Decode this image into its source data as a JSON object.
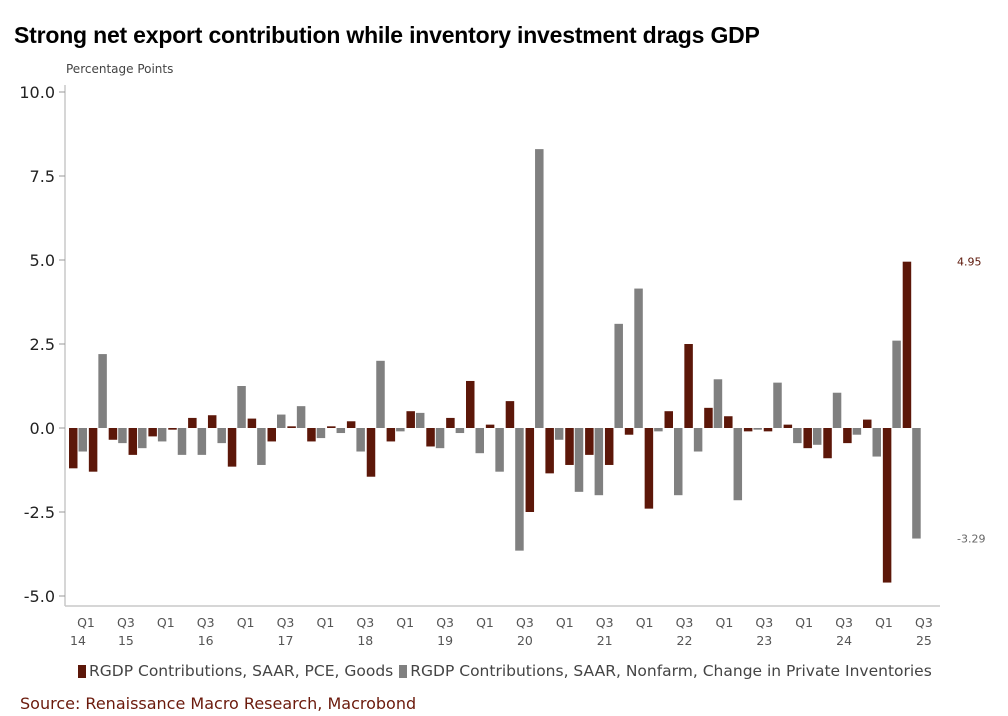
{
  "chart_data": {
    "type": "bar",
    "title": "Strong net export contribution while inventory investment drags GDP",
    "ylabel": "Percentage Points",
    "xlabel": "",
    "ylim": [
      -5.0,
      10.0
    ],
    "yticks": [
      "10.0",
      "7.5",
      "5.0",
      "2.5",
      "0.0",
      "-2.5",
      "-5.0"
    ],
    "ytick_values": [
      10,
      7.5,
      5,
      2.5,
      0,
      -2.5,
      -5
    ],
    "x_tick_labels": [
      {
        "q": "Q1",
        "y": "14"
      },
      {
        "q": "Q3",
        "y": "15"
      },
      {
        "q": "Q1",
        "y": ""
      },
      {
        "q": "Q3",
        "y": "16"
      },
      {
        "q": "Q1",
        "y": ""
      },
      {
        "q": "Q3",
        "y": "17"
      },
      {
        "q": "Q1",
        "y": ""
      },
      {
        "q": "Q3",
        "y": "18"
      },
      {
        "q": "Q1",
        "y": ""
      },
      {
        "q": "Q3",
        "y": "19"
      },
      {
        "q": "Q1",
        "y": ""
      },
      {
        "q": "Q3",
        "y": "20"
      },
      {
        "q": "Q1",
        "y": ""
      },
      {
        "q": "Q3",
        "y": "21"
      },
      {
        "q": "Q1",
        "y": ""
      },
      {
        "q": "Q3",
        "y": "22"
      },
      {
        "q": "Q1",
        "y": ""
      },
      {
        "q": "Q3",
        "y": "23"
      },
      {
        "q": "Q1",
        "y": ""
      },
      {
        "q": "Q3",
        "y": "24"
      },
      {
        "q": "Q1",
        "y": ""
      },
      {
        "q": "Q3",
        "y": "25"
      }
    ],
    "series": [
      {
        "name": "RGDP Contributions, SAAR, PCE, Goods",
        "color": "#5c1709",
        "values": [
          -1.2,
          -1.3,
          -0.35,
          -0.8,
          -0.25,
          -0.05,
          0.3,
          0.38,
          -1.15,
          0.28,
          -0.4,
          0.05,
          -0.4,
          0.05,
          0.2,
          -1.45,
          -0.4,
          0.5,
          -0.55,
          0.3,
          1.4,
          0.1,
          0.8,
          -2.5,
          -1.35,
          -1.1,
          -0.8,
          -1.1,
          -0.2,
          -2.4,
          0.5,
          2.5,
          0.6,
          0.35,
          -0.1,
          -0.1,
          0.1,
          -0.6,
          -0.9,
          -0.45,
          0.25,
          -4.6,
          4.95
        ]
      },
      {
        "name": "RGDP Contributions, SAAR, Nonfarm, Change in Private Inventories",
        "color": "#808080",
        "values": [
          -0.7,
          2.2,
          -0.45,
          -0.6,
          -0.4,
          -0.8,
          -0.8,
          -0.45,
          1.25,
          -1.1,
          0.4,
          0.65,
          -0.3,
          -0.15,
          -0.7,
          2.0,
          -0.1,
          0.45,
          -0.6,
          -0.15,
          -0.75,
          -1.3,
          -3.65,
          8.3,
          -0.35,
          -1.9,
          -2.0,
          3.1,
          4.15,
          -0.1,
          -2.0,
          -0.7,
          1.45,
          -2.15,
          -0.05,
          1.35,
          -0.45,
          -0.5,
          1.05,
          -0.2,
          -0.85,
          2.6,
          -3.29
        ]
      }
    ],
    "annotations": [
      {
        "text": "4.95",
        "series": 0,
        "color": "#5c1709"
      },
      {
        "text": "-3.29",
        "series": 1,
        "color": "#666666"
      }
    ],
    "legend": "bottom",
    "grid": false
  },
  "source": "Source: Renaissance Macro Research, Macrobond"
}
